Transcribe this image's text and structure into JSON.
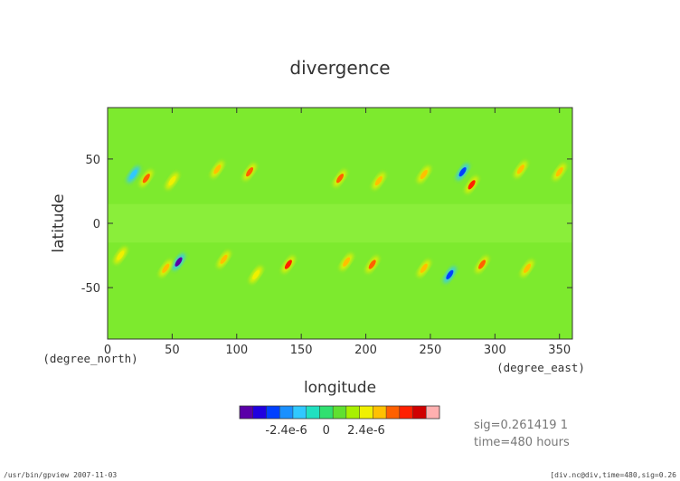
{
  "chart_data": {
    "type": "heatmap",
    "title": "divergence",
    "xlabel": "longitude",
    "ylabel": "latitude",
    "x_unit": "(degree_east)",
    "y_unit": "(degree_north)",
    "xlim": [
      0,
      360
    ],
    "ylim": [
      -90,
      90
    ],
    "x_ticks": [
      "0",
      "50",
      "100",
      "150",
      "200",
      "250",
      "300",
      "350"
    ],
    "y_ticks": [
      "50",
      "0",
      "-50"
    ],
    "colorbar": {
      "tick_labels": [
        "-2.4e-6",
        "0",
        "2.4e-6"
      ],
      "tick_values": [
        -2.4e-06,
        0,
        2.4e-06
      ],
      "colors": [
        "#5a00a8",
        "#2000e0",
        "#0040ff",
        "#1a90ff",
        "#30c8ff",
        "#20e0c0",
        "#30e070",
        "#60e030",
        "#a8f000",
        "#f0f000",
        "#ffc000",
        "#ff6000",
        "#ff2000",
        "#d00000",
        "#ffb0b0"
      ]
    },
    "features": [
      {
        "lon": 30,
        "lat": 35,
        "value": 4e-06
      },
      {
        "lon": 50,
        "lat": 33,
        "value": 2e-06
      },
      {
        "lon": 85,
        "lat": 42,
        "value": 3e-06
      },
      {
        "lon": 110,
        "lat": 40,
        "value": 4e-06
      },
      {
        "lon": 180,
        "lat": 35,
        "value": 4e-06
      },
      {
        "lon": 210,
        "lat": 33,
        "value": 3e-06
      },
      {
        "lon": 245,
        "lat": 38,
        "value": 3e-06
      },
      {
        "lon": 282,
        "lat": 30,
        "value": 5e-06
      },
      {
        "lon": 320,
        "lat": 42,
        "value": 3e-06
      },
      {
        "lon": 350,
        "lat": 40,
        "value": 3e-06
      },
      {
        "lon": 20,
        "lat": 38,
        "value": -2e-06
      },
      {
        "lon": 275,
        "lat": 40,
        "value": -3e-06
      },
      {
        "lon": 55,
        "lat": -30,
        "value": -5e-06
      },
      {
        "lon": 140,
        "lat": -32,
        "value": 5e-06
      },
      {
        "lon": 45,
        "lat": -35,
        "value": 3e-06
      },
      {
        "lon": 185,
        "lat": -30,
        "value": 3e-06
      },
      {
        "lon": 205,
        "lat": -32,
        "value": 4e-06
      },
      {
        "lon": 245,
        "lat": -35,
        "value": 3e-06
      },
      {
        "lon": 265,
        "lat": -40,
        "value": -3e-06
      },
      {
        "lon": 290,
        "lat": -32,
        "value": 4e-06
      },
      {
        "lon": 325,
        "lat": -35,
        "value": 3e-06
      },
      {
        "lon": 115,
        "lat": -40,
        "value": 2e-06
      },
      {
        "lon": 90,
        "lat": -28,
        "value": 3e-06
      },
      {
        "lon": 10,
        "lat": -25,
        "value": 2e-06
      }
    ]
  },
  "info": {
    "sig_line": "sig=0.261419  1",
    "time_line": "time=480  hours"
  },
  "footer": {
    "left": "/usr/bin/gpview   2007-11-03",
    "right": "[div.nc@div,time=480,sig=0.26"
  }
}
